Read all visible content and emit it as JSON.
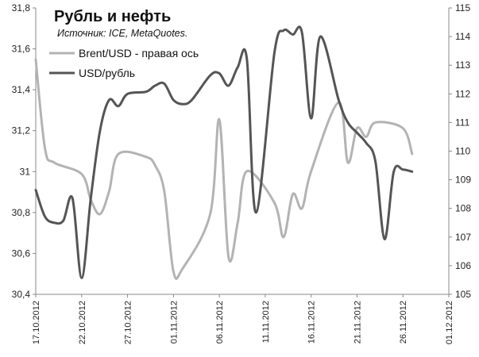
{
  "chart_data": {
    "type": "line",
    "title": "Рубль и нефть",
    "subtitle": "Источник: ICE, MetaQuotes.",
    "xlabel": "",
    "ylabel_left": "",
    "ylabel_right": "",
    "ylim_left": [
      30.4,
      31.8
    ],
    "ylim_right": [
      105,
      115
    ],
    "left_ticks": [
      "30,4",
      "30,6",
      "30,8",
      "31",
      "31,2",
      "31,4",
      "31,6",
      "31,8"
    ],
    "right_ticks": [
      "105",
      "106",
      "107",
      "108",
      "109",
      "110",
      "111",
      "112",
      "113",
      "114",
      "115"
    ],
    "x_ticks": [
      "17.10.2012",
      "22.10.2012",
      "27.10.2012",
      "01.11.2012",
      "06.11.2012",
      "11.11.2012",
      "16.11.2012",
      "21.11.2012",
      "26.11.2012",
      "01.12.2012"
    ],
    "legend_position": "top-left",
    "grid": false,
    "series": [
      {
        "name": "Brent/USD - правая ось",
        "axis": "right",
        "color": "#b3b3b3",
        "x": [
          "17.10.2012",
          "18.10.2012",
          "19.10.2012",
          "22.10.2012",
          "23.10.2012",
          "24.10.2012",
          "25.10.2012",
          "26.10.2012",
          "29.10.2012",
          "30.10.2012",
          "31.10.2012",
          "01.11.2012",
          "02.11.2012",
          "05.11.2012",
          "06.11.2012",
          "07.11.2012",
          "08.11.2012",
          "09.11.2012",
          "12.11.2012",
          "13.11.2012",
          "14.11.2012",
          "15.11.2012",
          "16.11.2012",
          "19.11.2012",
          "20.11.2012",
          "21.11.2012",
          "22.11.2012",
          "23.11.2012",
          "26.11.2012",
          "27.11.2012"
        ],
        "values": [
          113.2,
          110.1,
          109.6,
          109.2,
          108.3,
          107.8,
          108.6,
          109.9,
          109.8,
          109.5,
          108.6,
          105.8,
          105.9,
          107.8,
          111.1,
          106.3,
          107.5,
          109.3,
          108.2,
          107.0,
          108.5,
          108.0,
          109.3,
          111.7,
          109.6,
          110.8,
          110.5,
          111.0,
          110.8,
          109.9
        ]
      },
      {
        "name": "USD/рубль",
        "axis": "left",
        "color": "#555555",
        "x": [
          "17.10.2012",
          "18.10.2012",
          "19.10.2012",
          "20.10.2012",
          "21.10.2012",
          "22.10.2012",
          "23.10.2012",
          "24.10.2012",
          "25.10.2012",
          "26.10.2012",
          "27.10.2012",
          "29.10.2012",
          "30.10.2012",
          "31.10.2012",
          "01.11.2012",
          "02.11.2012",
          "03.11.2012",
          "05.11.2012",
          "06.11.2012",
          "07.11.2012",
          "08.11.2012",
          "09.11.2012",
          "10.11.2012",
          "12.11.2012",
          "13.11.2012",
          "14.11.2012",
          "15.11.2012",
          "16.11.2012",
          "17.11.2012",
          "19.11.2012",
          "20.11.2012",
          "21.11.2012",
          "22.11.2012",
          "23.11.2012",
          "24.11.2012",
          "25.11.2012",
          "26.11.2012",
          "27.11.2012"
        ],
        "values": [
          30.91,
          30.78,
          30.75,
          30.76,
          30.87,
          30.48,
          30.87,
          31.2,
          31.35,
          31.32,
          31.38,
          31.39,
          31.42,
          31.43,
          31.35,
          31.33,
          31.35,
          31.47,
          31.48,
          31.42,
          31.51,
          31.55,
          30.8,
          31.58,
          31.69,
          31.67,
          31.68,
          31.26,
          31.66,
          31.35,
          31.24,
          31.19,
          31.14,
          31.05,
          30.67,
          31.0,
          31.01,
          31.0
        ]
      }
    ]
  }
}
